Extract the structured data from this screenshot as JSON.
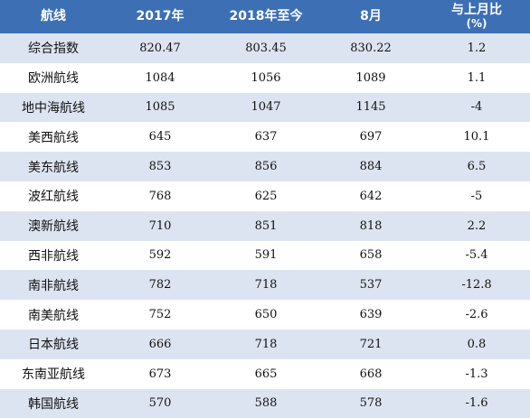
{
  "header": {
    "col0": "航线",
    "col1": "2017年",
    "col2": "2018年至今",
    "col3": "8月",
    "col4_line1": "与上月比",
    "col4_line2": "(%)"
  },
  "rows": [
    {
      "name": "综合指数",
      "y2017": "820.47",
      "y2018": "803.45",
      "aug": "830.22",
      "change": "1.2"
    },
    {
      "name": "欧洲航线",
      "y2017": "1084",
      "y2018": "1056",
      "aug": "1089",
      "change": "1.1"
    },
    {
      "name": "地中海航线",
      "y2017": "1085",
      "y2018": "1047",
      "aug": "1145",
      "change": "-4"
    },
    {
      "name": "美西航线",
      "y2017": "645",
      "y2018": "637",
      "aug": "697",
      "change": "10.1"
    },
    {
      "name": "美东航线",
      "y2017": "853",
      "y2018": "856",
      "aug": "884",
      "change": "6.5"
    },
    {
      "name": "波红航线",
      "y2017": "768",
      "y2018": "625",
      "aug": "642",
      "change": "-5"
    },
    {
      "name": "澳新航线",
      "y2017": "710",
      "y2018": "851",
      "aug": "818",
      "change": "2.2"
    },
    {
      "name": "西非航线",
      "y2017": "592",
      "y2018": "591",
      "aug": "658",
      "change": "-5.4"
    },
    {
      "name": "南非航线",
      "y2017": "782",
      "y2018": "718",
      "aug": "537",
      "change": "-12.8"
    },
    {
      "name": "南美航线",
      "y2017": "752",
      "y2018": "650",
      "aug": "639",
      "change": "-2.6"
    },
    {
      "name": "日本航线",
      "y2017": "666",
      "y2018": "718",
      "aug": "721",
      "change": "0.8"
    },
    {
      "name": "东南亚航线",
      "y2017": "673",
      "y2018": "665",
      "aug": "668",
      "change": "-1.3"
    },
    {
      "name": "韩国航线",
      "y2017": "570",
      "y2018": "588",
      "aug": "578",
      "change": "-1.6"
    }
  ],
  "colors": {
    "header_bg": "#3d6fb4",
    "stripe_bg": "#dde4f1"
  }
}
